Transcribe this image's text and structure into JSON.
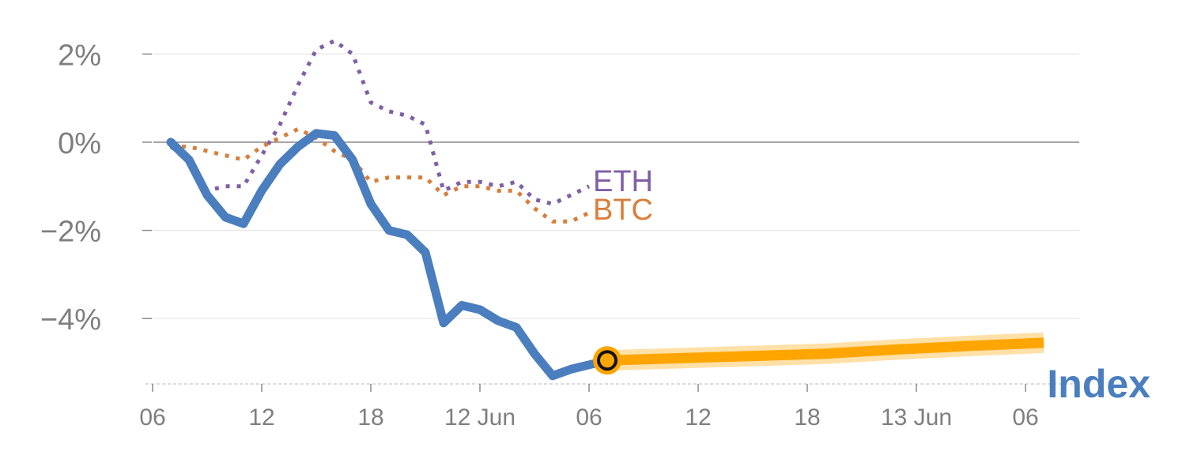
{
  "chart_data": {
    "type": "line",
    "x_unit": "hours",
    "xlim": [
      0,
      49
    ],
    "ylim": [
      -5.5,
      2.6
    ],
    "y_ticks": [
      {
        "value": 2,
        "label": "2%"
      },
      {
        "value": 0,
        "label": "0%"
      },
      {
        "value": -2,
        "label": "−2%"
      },
      {
        "value": -4,
        "label": "−4%"
      }
    ],
    "x_ticks": [
      {
        "value": 0,
        "label": "06"
      },
      {
        "value": 6,
        "label": "12"
      },
      {
        "value": 12,
        "label": "18"
      },
      {
        "value": 18,
        "label": "12 Jun"
      },
      {
        "value": 24,
        "label": "06"
      },
      {
        "value": 30,
        "label": "12"
      },
      {
        "value": 36,
        "label": "18"
      },
      {
        "value": 42,
        "label": "13 Jun"
      },
      {
        "value": 48,
        "label": "06"
      }
    ],
    "zero_line": true,
    "grid": "horizontal",
    "series": [
      {
        "name": "ETH",
        "color": "#7f5fa6",
        "style": "dotted",
        "label_position": "end",
        "x": [
          1,
          2,
          3,
          4,
          5,
          6,
          7,
          8,
          9,
          10,
          11,
          12,
          13,
          14,
          15,
          16,
          17,
          18,
          19,
          20,
          21,
          22,
          23,
          24
        ],
        "y": [
          -0.1,
          -0.4,
          -1.1,
          -1.0,
          -1.0,
          -0.3,
          0.4,
          1.3,
          2.1,
          2.3,
          2.0,
          0.9,
          0.7,
          0.6,
          0.4,
          -1.1,
          -0.9,
          -0.9,
          -1.0,
          -0.9,
          -1.3,
          -1.4,
          -1.2,
          -1.0
        ]
      },
      {
        "name": "BTC",
        "color": "#d97e3a",
        "style": "dotted",
        "label_position": "end",
        "x": [
          1,
          2,
          3,
          4,
          5,
          6,
          7,
          8,
          9,
          10,
          11,
          12,
          13,
          14,
          15,
          16,
          17,
          18,
          19,
          20,
          21,
          22,
          23,
          24
        ],
        "y": [
          -0.1,
          -0.1,
          -0.2,
          -0.3,
          -0.4,
          -0.1,
          0.1,
          0.3,
          0.1,
          -0.2,
          -0.4,
          -0.9,
          -0.8,
          -0.8,
          -0.8,
          -1.2,
          -1.0,
          -1.0,
          -1.1,
          -1.1,
          -1.5,
          -1.8,
          -1.8,
          -1.6
        ]
      },
      {
        "name": "Index",
        "color": "#4a7ebf",
        "style": "solid",
        "label_position": "bottom-right",
        "x": [
          1,
          2,
          3,
          4,
          5,
          6,
          7,
          8,
          9,
          10,
          11,
          12,
          13,
          14,
          15,
          16,
          17,
          18,
          19,
          20,
          21,
          22,
          23,
          24,
          25
        ],
        "y": [
          0.0,
          -0.4,
          -1.2,
          -1.7,
          -1.85,
          -1.1,
          -0.5,
          -0.1,
          0.2,
          0.15,
          -0.4,
          -1.4,
          -2.0,
          -2.1,
          -2.5,
          -4.1,
          -3.7,
          -3.8,
          -4.05,
          -4.2,
          -4.8,
          -5.3,
          -5.15,
          -5.05,
          -4.95
        ]
      }
    ],
    "forecast": {
      "color": "#ffa500",
      "x": [
        25,
        29,
        33,
        37,
        41,
        45,
        49
      ],
      "y": [
        -4.95,
        -4.9,
        -4.85,
        -4.8,
        -4.7,
        -4.62,
        -4.55
      ]
    },
    "marker": {
      "x": 25,
      "y": -4.95
    }
  }
}
